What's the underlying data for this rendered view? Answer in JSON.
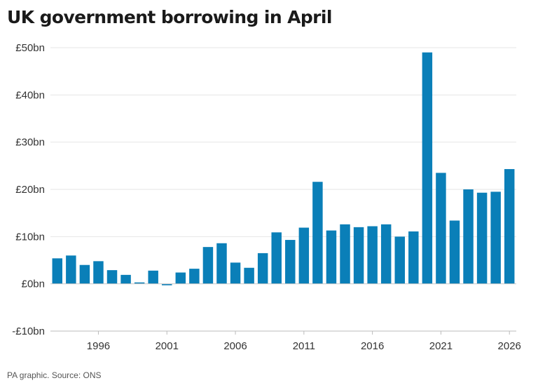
{
  "chart_data": {
    "type": "bar",
    "title": "UK government borrowing in April",
    "source": "PA graphic. Source: ONS",
    "bar_color": "#0a7fb8",
    "grid": true,
    "ylim": [
      -10,
      50
    ],
    "y_ticks": [
      {
        "value": -10,
        "label": "-£10bn"
      },
      {
        "value": 0,
        "label": "£0bn"
      },
      {
        "value": 10,
        "label": "£10bn"
      },
      {
        "value": 20,
        "label": "£20bn"
      },
      {
        "value": 30,
        "label": "£30bn"
      },
      {
        "value": 40,
        "label": "£40bn"
      },
      {
        "value": 50,
        "label": "£50bn"
      }
    ],
    "x_ticks": [
      {
        "value": 1996,
        "label": "1996"
      },
      {
        "value": 2001,
        "label": "2001"
      },
      {
        "value": 2006,
        "label": "2006"
      },
      {
        "value": 2011,
        "label": "2011"
      },
      {
        "value": 2016,
        "label": "2016"
      },
      {
        "value": 2021,
        "label": "2021"
      },
      {
        "value": 2026,
        "label": "2026"
      }
    ],
    "categories": [
      1993,
      1994,
      1995,
      1996,
      1997,
      1998,
      1999,
      2000,
      2001,
      2002,
      2003,
      2004,
      2005,
      2006,
      2007,
      2008,
      2009,
      2010,
      2011,
      2012,
      2013,
      2014,
      2015,
      2016,
      2017,
      2018,
      2019,
      2020,
      2021,
      2022,
      2023,
      2024,
      2025,
      2026
    ],
    "values": [
      5.4,
      6.0,
      4.0,
      4.8,
      2.9,
      1.9,
      0.3,
      2.8,
      -0.3,
      2.4,
      3.2,
      7.8,
      8.6,
      4.5,
      3.4,
      6.5,
      10.9,
      9.3,
      11.9,
      21.6,
      11.3,
      12.6,
      12.0,
      12.2,
      12.6,
      10.0,
      11.1,
      49.0,
      23.5,
      13.4,
      20.0,
      19.3,
      19.5,
      24.3
    ]
  }
}
